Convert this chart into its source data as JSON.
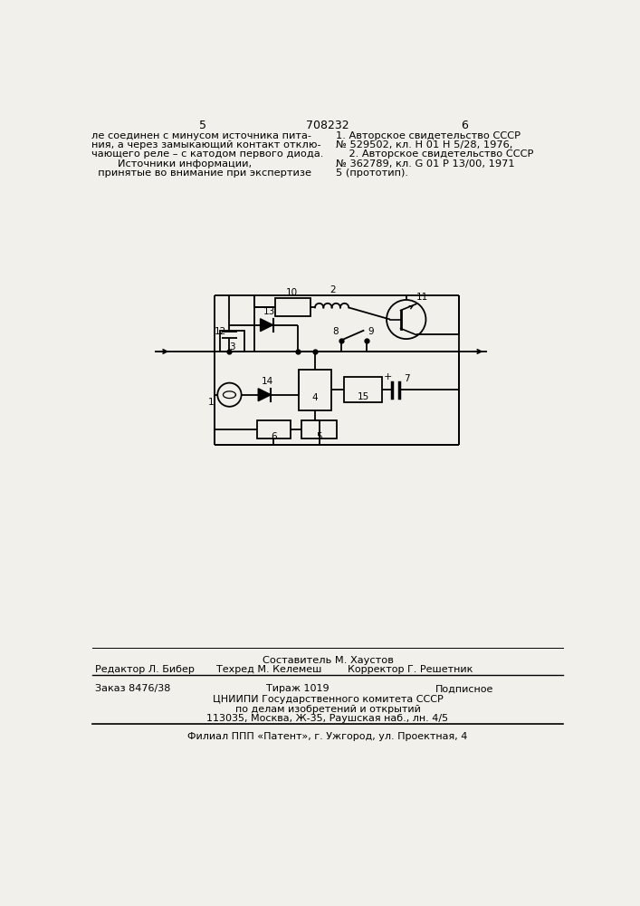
{
  "bg_color": "#f2f0eb",
  "page_number_left": "5",
  "page_number_center": "708232",
  "page_number_right": "6",
  "top_left_text": [
    "ле соединен с минусом источника пита-",
    "ния, а через замыкающий контакт отклю-",
    "чающего реле – с катодом первого диода.",
    "        Источники информации,",
    "  принятые во внимание при экспертизе"
  ],
  "top_right_text": [
    "1. Авторское свидетельство СССР",
    "№ 529502, кл. Н 01 Н 5/28, 1976,",
    "    2. Авторское свидетельство СССР",
    "№ 362789, кл. G 01 Р 13/00, 1971",
    "5 (прототип)."
  ],
  "bottom_line1": "Составитель М. Хаустов",
  "bottom_line2_left": "Редактор Л. Бибер",
  "bottom_line2_mid": "Техред М. Келемеш",
  "bottom_line2_right": "Корректор Г. Решетник",
  "bottom_line3_left": "Заказ 8476/38",
  "bottom_line3_mid": "Тираж 1019",
  "bottom_line3_right": "Подписное",
  "bottom_line4": "ЦНИИПИ Государственного комитета СССР",
  "bottom_line5": "по делам изобретений и открытий",
  "bottom_line6": "113035, Москва, Ж-35, Раушская наб., лн. 4/5",
  "bottom_line7": "Филиал ППП «Патент», г. Ужгород, ул. Проектная, 4"
}
